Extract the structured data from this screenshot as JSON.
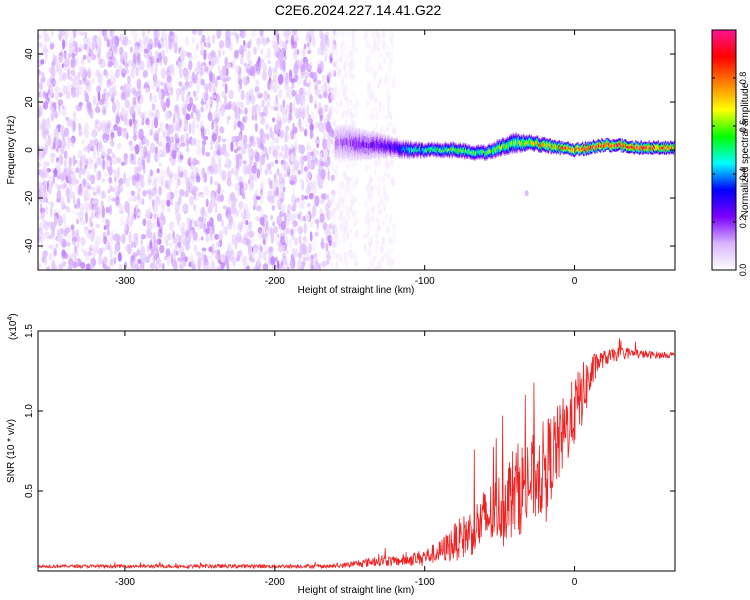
{
  "figure": {
    "title": "C2E6.2024.227.14.41.G22"
  },
  "chart_data": [
    {
      "type": "heatmap",
      "title": "C2E6.2024.227.14.41.G22",
      "xlabel": "Height of straight line (km)",
      "ylabel": "Frequency (Hz)",
      "xlim": [
        -358,
        67
      ],
      "ylim": [
        -50,
        50
      ],
      "x_ticks": [
        -300,
        -200,
        -100,
        0
      ],
      "x_tick_labels": [
        "-300",
        "-200",
        "-100",
        "0"
      ],
      "y_ticks": [
        -40,
        -20,
        0,
        20,
        40
      ],
      "y_tick_labels": [
        "-40",
        "-20",
        "0",
        "20",
        "40"
      ],
      "colorbar": {
        "label": "Normalized spectral amplitude",
        "range": [
          0,
          1
        ],
        "ticks": [
          0.0,
          0.2,
          0.4,
          0.6,
          0.8
        ],
        "tick_labels": [
          "0.0",
          "0.2",
          "0.4",
          "0.6",
          "0.8"
        ],
        "colormap": [
          "#ffffff",
          "#d9b3ff",
          "#7a00ff",
          "#0000ff",
          "#00ffff",
          "#00ff00",
          "#ffff00",
          "#ff8000",
          "#ff0000",
          "#ff1493"
        ]
      },
      "noise_region": {
        "x_range": [
          -358,
          -160
        ],
        "freq_range": [
          -50,
          50
        ],
        "amplitude": [
          0.03,
          0.15
        ]
      },
      "faint_streaks": [
        {
          "x_range": [
            -140,
            -120
          ],
          "freq_range": [
            -50,
            50
          ],
          "amplitude": 0.03
        },
        {
          "x_range": [
            -162,
            -145
          ],
          "freq_range": [
            -50,
            50
          ],
          "amplitude": 0.03
        }
      ],
      "signal_track": {
        "x": [
          -160,
          -150,
          -140,
          -130,
          -120,
          -110,
          -100,
          -90,
          -80,
          -70,
          -60,
          -50,
          -40,
          -30,
          -20,
          -10,
          0,
          10,
          20,
          30,
          40,
          50,
          60,
          67
        ],
        "freq": [
          3,
          3,
          2,
          2,
          1,
          0,
          0,
          0,
          0,
          -1,
          -1,
          1,
          3,
          3,
          2,
          1,
          0,
          1,
          2,
          2,
          1,
          1,
          1,
          1
        ],
        "amplitude": [
          0.15,
          0.2,
          0.22,
          0.25,
          0.3,
          0.45,
          0.5,
          0.55,
          0.6,
          0.55,
          0.55,
          0.6,
          0.6,
          0.7,
          0.75,
          0.8,
          0.85,
          0.9,
          0.9,
          0.9,
          0.9,
          0.85,
          0.85,
          0.8
        ],
        "halfwidth_hz": [
          7,
          7,
          6,
          5,
          4,
          3.5,
          3,
          3,
          3,
          3,
          3,
          3.5,
          4,
          3,
          3,
          2.5,
          2.5,
          2.5,
          2.5,
          2.5,
          2.5,
          2.5,
          2.5,
          2.5
        ]
      },
      "isolated_blob": {
        "x": -32,
        "freq": -18,
        "amplitude": 0.1
      }
    },
    {
      "type": "line",
      "xlabel": "Height of straight line (km)",
      "ylabel": "SNR (10 * v/v)",
      "y_scale_label": "(x10",
      "y_scale_exponent": "4",
      "y_scale_suffix": ")",
      "xlim": [
        -358,
        67
      ],
      "ylim": [
        0,
        1.5
      ],
      "x_ticks": [
        -300,
        -200,
        -100,
        0
      ],
      "x_tick_labels": [
        "-300",
        "-200",
        "-100",
        "0"
      ],
      "y_ticks": [
        0.5,
        1.0,
        1.5
      ],
      "y_tick_labels": [
        "0.5",
        "1.0",
        "1.5"
      ],
      "color": "#ee2222",
      "series": [
        {
          "x": [
            -358,
            -300,
            -250,
            -200,
            -160,
            -140,
            -130,
            -120,
            -110,
            -100,
            -90,
            -80,
            -70,
            -60,
            -50,
            -40,
            -30,
            -20,
            -10,
            0,
            5,
            10,
            15,
            20,
            30,
            40,
            50,
            60,
            67
          ],
          "values": [
            0.03,
            0.03,
            0.03,
            0.03,
            0.03,
            0.05,
            0.07,
            0.06,
            0.07,
            0.09,
            0.12,
            0.18,
            0.24,
            0.32,
            0.4,
            0.5,
            0.55,
            0.65,
            0.8,
            1.0,
            1.1,
            1.2,
            1.3,
            1.33,
            1.36,
            1.36,
            1.35,
            1.35,
            1.35
          ],
          "noise": [
            0.01,
            0.01,
            0.012,
            0.012,
            0.012,
            0.025,
            0.04,
            0.03,
            0.04,
            0.05,
            0.07,
            0.12,
            0.15,
            0.2,
            0.22,
            0.3,
            0.28,
            0.3,
            0.25,
            0.22,
            0.2,
            0.15,
            0.07,
            0.05,
            0.04,
            0.03,
            0.025,
            0.02,
            0.02
          ]
        }
      ]
    }
  ]
}
